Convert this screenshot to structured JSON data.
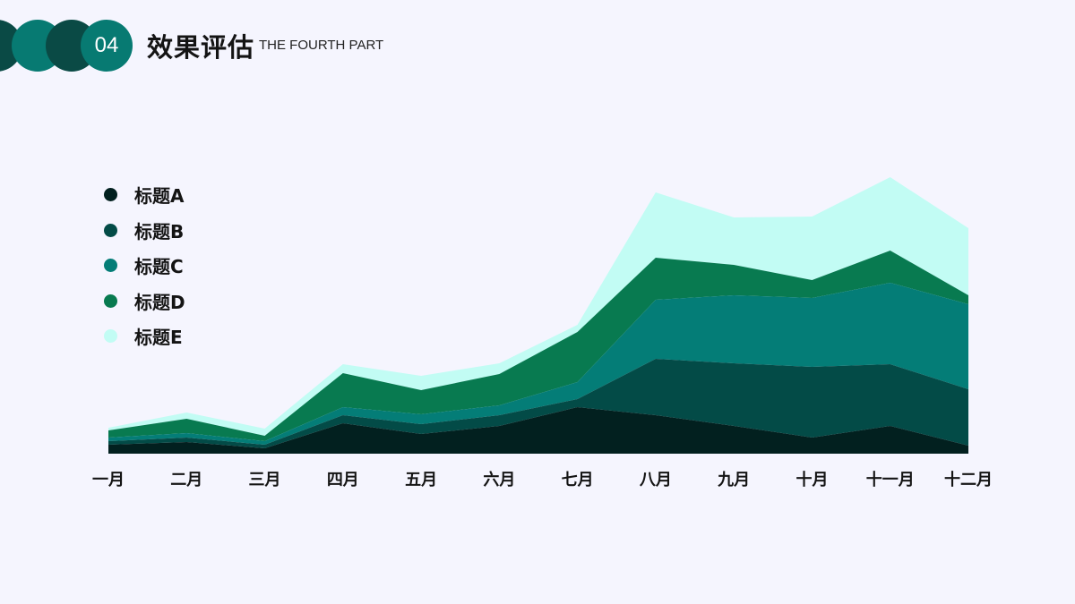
{
  "header": {
    "section_number": "04",
    "title": "效果评估",
    "subtitle": "THE FOURTH PART"
  },
  "colors": {
    "background": "#f5f5fe",
    "decor_dark": "#0a4a45",
    "decor_mid": "#077a72"
  },
  "chart_data": {
    "type": "area",
    "stacked": true,
    "categories": [
      "一月",
      "二月",
      "三月",
      "四月",
      "五月",
      "六月",
      "七月",
      "八月",
      "九月",
      "十月",
      "十一月",
      "十二月"
    ],
    "series": [
      {
        "name": "标题A",
        "color": "#02201f",
        "values": [
          10,
          13,
          6,
          34,
          22,
          31,
          52,
          43,
          31,
          18,
          31,
          9
        ]
      },
      {
        "name": "标题B",
        "color": "#034b47",
        "values": [
          4,
          5,
          4,
          9,
          11,
          12,
          9,
          63,
          70,
          79,
          69,
          63
        ]
      },
      {
        "name": "标题C",
        "color": "#047d77",
        "values": [
          4,
          5,
          4,
          9,
          11,
          11,
          19,
          66,
          76,
          77,
          91,
          95
        ]
      },
      {
        "name": "标题D",
        "color": "#087a50",
        "values": [
          8,
          16,
          6,
          38,
          27,
          35,
          56,
          47,
          34,
          20,
          36,
          10
        ]
      },
      {
        "name": "标题E",
        "color": "#c2fcf4",
        "values": [
          3,
          7,
          8,
          10,
          16,
          12,
          8,
          73,
          53,
          71,
          82,
          75
        ]
      }
    ],
    "ylim": [
      0,
      320
    ],
    "legend_position": "left",
    "grid": false
  }
}
